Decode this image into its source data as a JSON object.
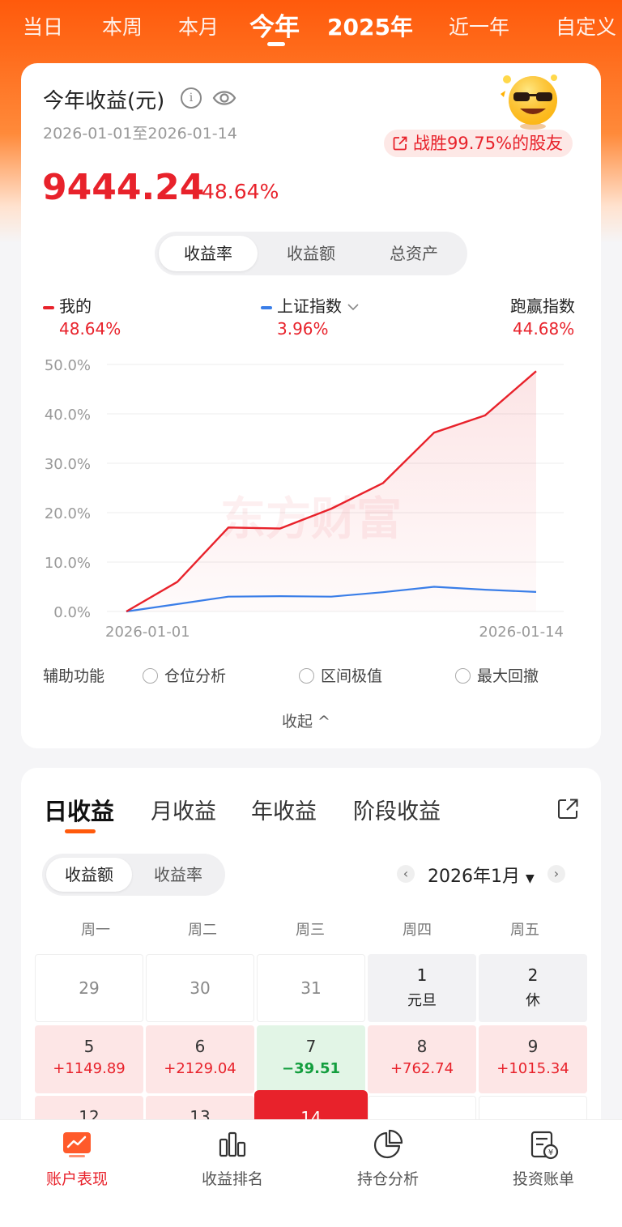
{
  "period_tabs": [
    "当日",
    "本周",
    "本月",
    "今年",
    "2025年",
    "近一年",
    "自定义"
  ],
  "summary": {
    "title": "今年收益(元)",
    "date_range": "2026-01-01至2026-01-14",
    "rank_text": "战胜99.75%的股友",
    "amount": "9444.24",
    "rate": "48.64%"
  },
  "chart_mode_tabs": [
    "收益率",
    "收益额",
    "总资产"
  ],
  "legend": {
    "mine": {
      "label": "我的",
      "value": "48.64%",
      "color": "#e8222b"
    },
    "index": {
      "label": "上证指数",
      "value": "3.96%",
      "color": "#3a7ee8"
    },
    "beat": {
      "label": "跑赢指数",
      "value": "44.68%"
    }
  },
  "chart_data": {
    "type": "line",
    "x": [
      "2026-01-01",
      "2026-01-05",
      "2026-01-06",
      "2026-01-07",
      "2026-01-08",
      "2026-01-09",
      "2026-01-12",
      "2026-01-13",
      "2026-01-14"
    ],
    "x_tick_labels": [
      "2026-01-01",
      "2026-01-14"
    ],
    "y_tick_labels": [
      "50.0%",
      "40.0%",
      "30.0%",
      "20.0%",
      "10.0%",
      "0.0%"
    ],
    "ylim": [
      0,
      50
    ],
    "watermark": "东方财富",
    "series": [
      {
        "name": "我的",
        "values": [
          0,
          6.0,
          17.0,
          16.8,
          20.8,
          26.0,
          36.2,
          39.7,
          48.64
        ]
      },
      {
        "name": "上证指数",
        "values": [
          0,
          1.5,
          3.0,
          3.1,
          3.0,
          3.9,
          5.0,
          4.4,
          3.96
        ]
      }
    ],
    "grid": true
  },
  "aux": {
    "label": "辅助功能",
    "options": [
      "仓位分析",
      "区间极值",
      "最大回撤"
    ],
    "collapse": "收起 ^"
  },
  "income_tabs": [
    "日收益",
    "月收益",
    "年收益",
    "阶段收益"
  ],
  "income_mode_tabs": [
    "收益额",
    "收益率"
  ],
  "calendar": {
    "month": "2026年1月",
    "prev": "‹",
    "next": "›",
    "weekdays": [
      "周一",
      "周二",
      "周三",
      "周四",
      "周五"
    ],
    "rows": [
      [
        {
          "d": "29",
          "v": ""
        },
        {
          "d": "30",
          "v": ""
        },
        {
          "d": "31",
          "v": ""
        },
        {
          "d": "1",
          "v": "元旦"
        },
        {
          "d": "2",
          "v": "休"
        }
      ],
      [
        {
          "d": "5",
          "v": "+1149.89"
        },
        {
          "d": "6",
          "v": "+2129.04"
        },
        {
          "d": "7",
          "v": "−39.51"
        },
        {
          "d": "8",
          "v": "+762.74"
        },
        {
          "d": "9",
          "v": "+1015.34"
        }
      ],
      [
        {
          "d": "12",
          "v": ""
        },
        {
          "d": "13",
          "v": ""
        },
        {
          "d": "14",
          "v": ""
        }
      ]
    ]
  },
  "bottom_nav": [
    "账户表现",
    "收益排名",
    "持仓分析",
    "投资账单"
  ]
}
